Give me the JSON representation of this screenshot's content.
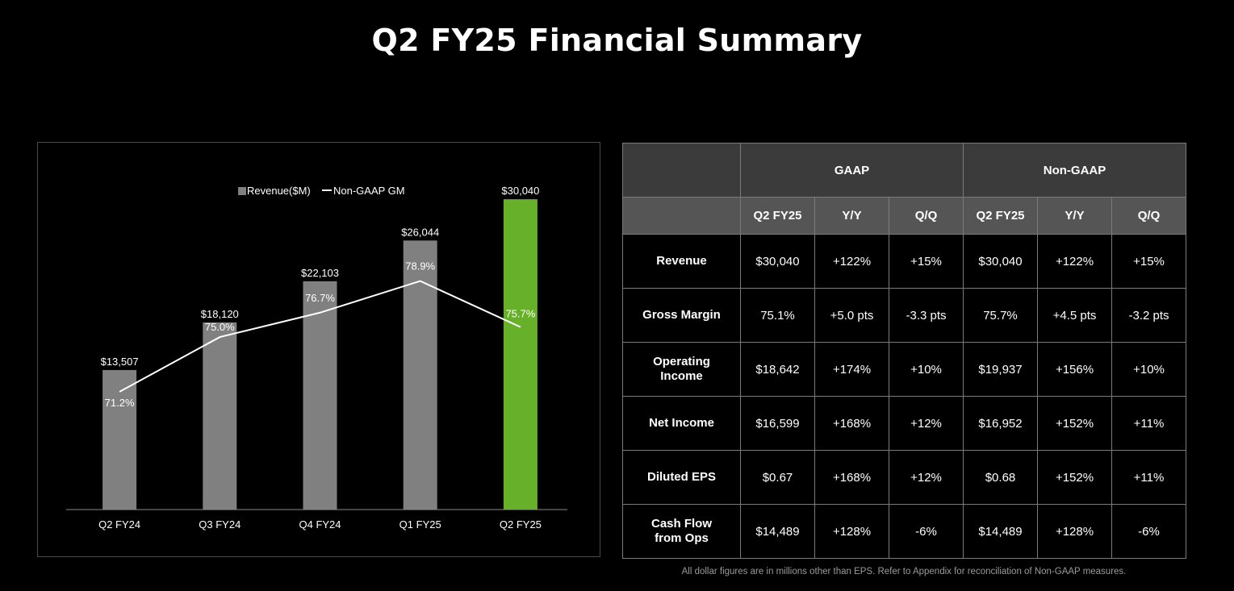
{
  "title": "Q2 FY25 Financial Summary",
  "colors": {
    "background": "#000000",
    "bar_default": "#808080",
    "bar_highlight": "#67b12a",
    "line": "#ffffff",
    "table_header_top": "#3b3b3b",
    "table_header_sub": "#555555",
    "border": "#7a7a7a"
  },
  "chart_data": {
    "type": "bar",
    "categories": [
      "Q2 FY24",
      "Q3 FY24",
      "Q4 FY24",
      "Q1 FY25",
      "Q2 FY25"
    ],
    "series": [
      {
        "name": "Revenue($M)",
        "kind": "bar",
        "values": [
          13507,
          18120,
          22103,
          26044,
          30040
        ],
        "labels": [
          "$13,507",
          "$18,120",
          "$22,103",
          "$26,044",
          "$30,040"
        ],
        "highlight_index": 4
      },
      {
        "name": "Non-GAAP GM",
        "kind": "line",
        "values": [
          71.2,
          75.0,
          76.7,
          78.9,
          75.7
        ],
        "labels": [
          "71.2%",
          "75.0%",
          "76.7%",
          "78.9%",
          "75.7%"
        ],
        "ylim": [
          63,
          86
        ]
      }
    ],
    "legend": [
      "Revenue($M)",
      "Non-GAAP GM"
    ],
    "legend_position": "top-center",
    "ylim": [
      0,
      32000
    ],
    "xlabel": "",
    "ylabel": "",
    "grid": false
  },
  "table": {
    "group_headers": [
      "GAAP",
      "Non-GAAP"
    ],
    "sub_headers": [
      "Q2 FY25",
      "Y/Y",
      "Q/Q",
      "Q2 FY25",
      "Y/Y",
      "Q/Q"
    ],
    "rows": [
      {
        "label": [
          "Revenue"
        ],
        "cells": [
          "$30,040",
          "+122%",
          "+15%",
          "$30,040",
          "+122%",
          "+15%"
        ]
      },
      {
        "label": [
          "Gross Margin"
        ],
        "cells": [
          "75.1%",
          "+5.0 pts",
          "-3.3 pts",
          "75.7%",
          "+4.5 pts",
          "-3.2 pts"
        ]
      },
      {
        "label": [
          "Operating",
          "Income"
        ],
        "cells": [
          "$18,642",
          "+174%",
          "+10%",
          "$19,937",
          "+156%",
          "+10%"
        ]
      },
      {
        "label": [
          "Net Income"
        ],
        "cells": [
          "$16,599",
          "+168%",
          "+12%",
          "$16,952",
          "+152%",
          "+11%"
        ]
      },
      {
        "label": [
          "Diluted EPS"
        ],
        "cells": [
          "$0.67",
          "+168%",
          "+12%",
          "$0.68",
          "+152%",
          "+11%"
        ]
      },
      {
        "label": [
          "Cash Flow",
          "from Ops"
        ],
        "cells": [
          "$14,489",
          "+128%",
          "-6%",
          "$14,489",
          "+128%",
          "-6%"
        ]
      }
    ]
  },
  "footnote": "All dollar figures are in millions other than EPS. Refer to Appendix for reconciliation of Non-GAAP measures."
}
